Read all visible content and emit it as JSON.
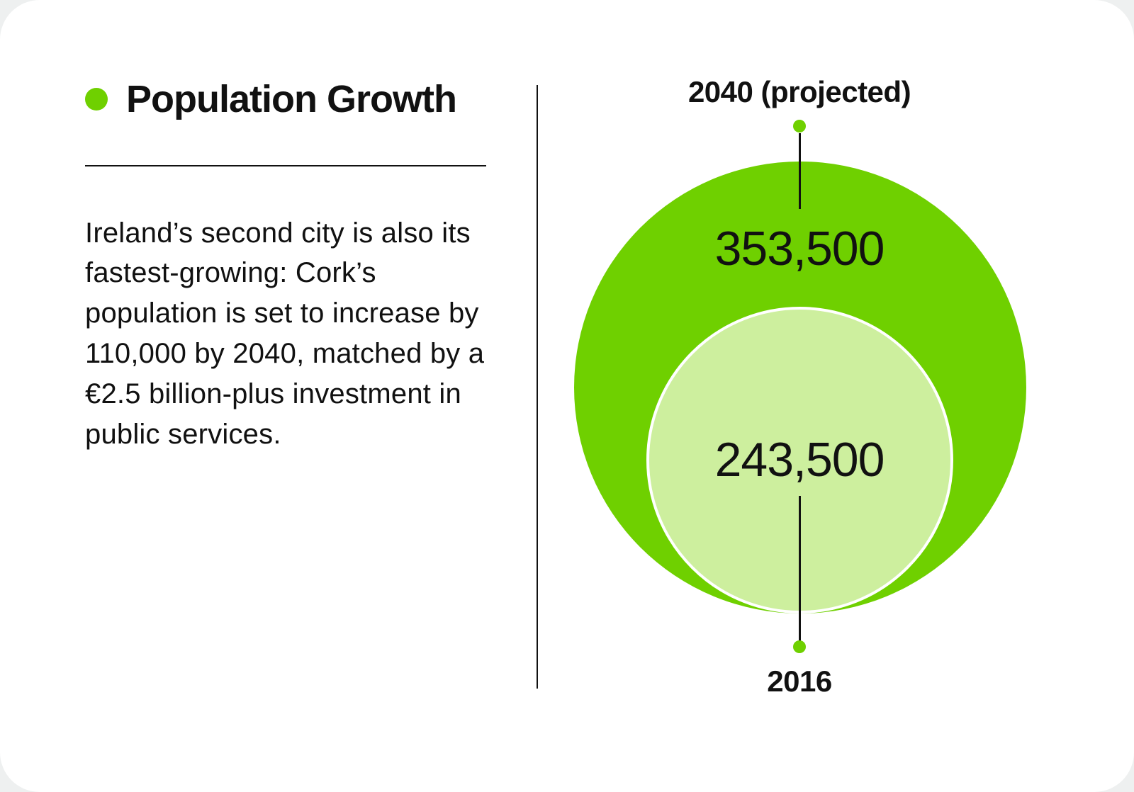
{
  "card": {
    "header": {
      "title": "Population Growth",
      "bullet_color": "#6fd000"
    },
    "description": "Ireland’s second city is also its fastest-growing: Cork’s population is set to increase by 110,000 by 2040, matched by a €2.5 billion-plus investment in public services."
  },
  "chart_data": {
    "type": "bubble",
    "title": "Population Growth",
    "layout": "nested-circles-bottom-aligned, callout lines with dots to top and bottom labels",
    "series": [
      {
        "name": "2040 (projected)",
        "value": 353500,
        "display": "353,500",
        "color": "#6fd000"
      },
      {
        "name": "2016",
        "value": 243500,
        "display": "243,500",
        "color": "#cdef9e"
      }
    ],
    "colors": {
      "accent_green": "#6fd000",
      "light_green": "#cdef9e",
      "text": "#111111",
      "card_background": "#ffffff"
    }
  }
}
